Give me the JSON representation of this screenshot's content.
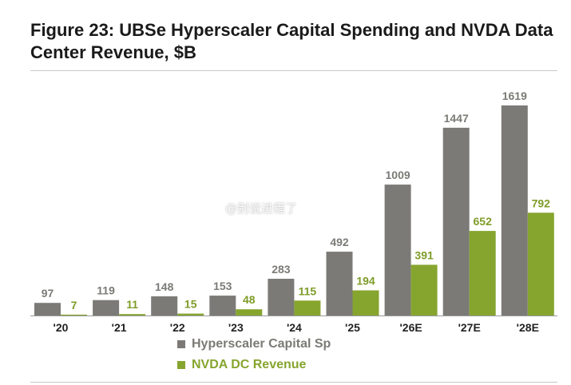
{
  "chart_data": {
    "type": "bar",
    "title": "Figure 23: UBSe Hyperscaler Capital Spending and NVDA Data Center Revenue, $B",
    "categories": [
      "'20",
      "'21",
      "'22",
      "'23",
      "'24",
      "'25",
      "'26E",
      "'27E",
      "'28E"
    ],
    "series": [
      {
        "name": "Hyperscaler Capital Spending",
        "legend_text": "Hyperscaler Capital Sp",
        "color": "#7b7a76",
        "label_color": "#7b7a76",
        "values": [
          97,
          119,
          148,
          153,
          283,
          492,
          1009,
          1447,
          1619
        ]
      },
      {
        "name": "NVDA DC Revenue",
        "legend_text": "NVDA DC Revenue",
        "color": "#86a52e",
        "label_color": "#7e9c28",
        "values": [
          7,
          11,
          15,
          48,
          115,
          194,
          391,
          652,
          792
        ]
      }
    ],
    "ylim": [
      0,
      1619
    ],
    "grid": false,
    "legend_position": "bottom"
  },
  "watermark": "@别说进程了"
}
